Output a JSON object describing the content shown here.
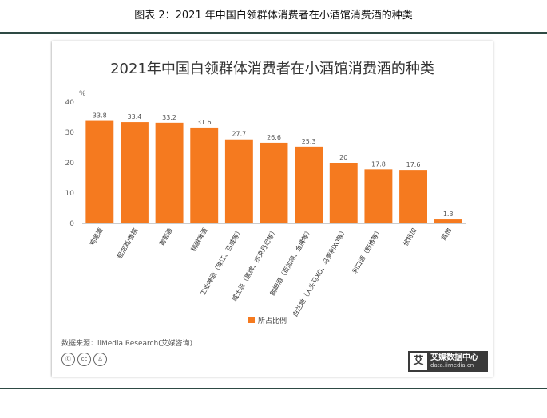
{
  "doc_caption": "图表 2：2021 年中国白领群体消费者在小酒馆消费酒的种类",
  "source_text": "数据来源：iiMedia Research(艾媒咨询)",
  "cc_icons": [
    "cc-by-icon",
    "cc-icon",
    "person-icon"
  ],
  "logo": {
    "mark": "艾",
    "brand": "艾媒数据中心",
    "url": "data.iimedia.cn"
  },
  "colors": {
    "bar": "#f57a1f",
    "axis": "#999999",
    "rule": "#2e4a44"
  },
  "chart_data": {
    "type": "bar",
    "title": "2021年中国白领群体消费者在小酒馆消费酒的种类",
    "ylabel": "%",
    "xlabel": "",
    "ylim": [
      0,
      40
    ],
    "yticks": [
      0,
      10,
      20,
      30,
      40
    ],
    "grid": false,
    "legend": "bottom-center",
    "series": [
      {
        "name": "所占比例",
        "values": [
          33.8,
          33.4,
          33.2,
          31.6,
          27.7,
          26.6,
          25.3,
          20,
          17.8,
          17.6,
          1.3
        ],
        "labels": [
          "33.8",
          "33.4",
          "33.2",
          "31.6",
          "27.7",
          "26.6",
          "25.3",
          "20",
          "17.8",
          "17.6",
          "1.3"
        ]
      }
    ],
    "categories": [
      "鸡尾酒",
      "起泡酒/香槟",
      "葡萄酒",
      "精酿啤酒",
      "工业啤酒（珠江、百威等）",
      "威士忌（黑牌、杰克丹尼等）",
      "朗姆酒（百加得、金牌等）",
      "白兰地（人头马XO、马爹利XO等）",
      "利口酒（野格等）",
      "伏特加",
      "其他"
    ]
  }
}
